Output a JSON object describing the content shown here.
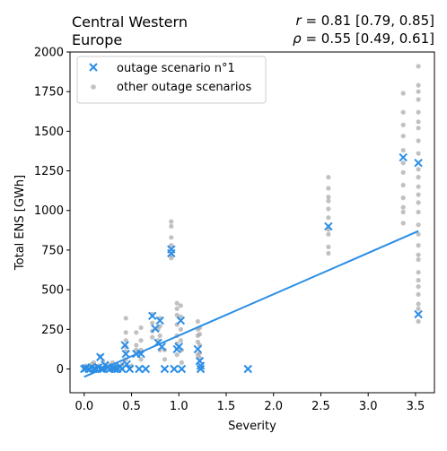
{
  "chart_data": {
    "type": "scatter",
    "title_lines": [
      "Central Western",
      "Europe"
    ],
    "stats": {
      "r_symbol": "r",
      "r_text": " = 0.81 [0.79, 0.85]",
      "rho_symbol": "ρ",
      "rho_text": " = 0.55 [0.49, 0.61]"
    },
    "xlabel": "Severity",
    "ylabel": "Total ENS [GWh]",
    "xlim": [
      -0.15,
      3.7
    ],
    "ylim": [
      -150,
      2000
    ],
    "x_ticks": [
      0.0,
      0.5,
      1.0,
      1.5,
      2.0,
      2.5,
      3.0,
      3.5
    ],
    "x_tick_labels": [
      "0.0",
      "0.5",
      "1.0",
      "1.5",
      "2.0",
      "2.5",
      "3.0",
      "3.5"
    ],
    "y_ticks": [
      0,
      250,
      500,
      750,
      1000,
      1250,
      1500,
      1750,
      2000
    ],
    "y_tick_labels": [
      "0",
      "250",
      "500",
      "750",
      "1000",
      "1250",
      "1500",
      "1750",
      "2000"
    ],
    "grid": false,
    "legend_position": "top-left",
    "colors": {
      "highlight": "#2b8ee6",
      "others": "#a6a6a6",
      "fit_line": "#2b8ee6"
    },
    "series": [
      {
        "name": "outage scenario n°1",
        "marker": "x",
        "points": [
          [
            0.0,
            0
          ],
          [
            0.02,
            5
          ],
          [
            0.05,
            0
          ],
          [
            0.08,
            10
          ],
          [
            0.1,
            0
          ],
          [
            0.12,
            0
          ],
          [
            0.15,
            10
          ],
          [
            0.17,
            75
          ],
          [
            0.18,
            0
          ],
          [
            0.2,
            0
          ],
          [
            0.22,
            25
          ],
          [
            0.25,
            10
          ],
          [
            0.27,
            0
          ],
          [
            0.3,
            5
          ],
          [
            0.32,
            0
          ],
          [
            0.35,
            0
          ],
          [
            0.38,
            15
          ],
          [
            0.4,
            0
          ],
          [
            0.43,
            150
          ],
          [
            0.44,
            95
          ],
          [
            0.45,
            30
          ],
          [
            0.48,
            0
          ],
          [
            0.55,
            95
          ],
          [
            0.58,
            0
          ],
          [
            0.6,
            95
          ],
          [
            0.65,
            0
          ],
          [
            0.72,
            335
          ],
          [
            0.75,
            255
          ],
          [
            0.78,
            165
          ],
          [
            0.8,
            305
          ],
          [
            0.82,
            140
          ],
          [
            0.85,
            0
          ],
          [
            0.92,
            730
          ],
          [
            0.92,
            755
          ],
          [
            0.95,
            0
          ],
          [
            0.98,
            125
          ],
          [
            1.0,
            140
          ],
          [
            1.02,
            305
          ],
          [
            1.03,
            0
          ],
          [
            1.2,
            125
          ],
          [
            1.22,
            50
          ],
          [
            1.23,
            0
          ],
          [
            1.23,
            20
          ],
          [
            1.73,
            0
          ],
          [
            2.58,
            900
          ],
          [
            3.37,
            1335
          ],
          [
            3.53,
            1300
          ],
          [
            3.53,
            345
          ]
        ]
      },
      {
        "name": "other outage scenarios",
        "marker": "o",
        "points": [
          [
            0.0,
            5
          ],
          [
            0.02,
            20
          ],
          [
            0.05,
            0
          ],
          [
            0.08,
            30
          ],
          [
            0.1,
            40
          ],
          [
            0.12,
            0
          ],
          [
            0.15,
            20
          ],
          [
            0.17,
            80
          ],
          [
            0.2,
            50
          ],
          [
            0.22,
            0
          ],
          [
            0.25,
            30
          ],
          [
            0.28,
            15
          ],
          [
            0.3,
            40
          ],
          [
            0.32,
            5
          ],
          [
            0.35,
            20
          ],
          [
            0.38,
            0
          ],
          [
            0.4,
            30
          ],
          [
            0.44,
            320
          ],
          [
            0.44,
            230
          ],
          [
            0.44,
            180
          ],
          [
            0.44,
            140
          ],
          [
            0.44,
            110
          ],
          [
            0.44,
            60
          ],
          [
            0.5,
            20
          ],
          [
            0.55,
            230
          ],
          [
            0.55,
            150
          ],
          [
            0.55,
            120
          ],
          [
            0.6,
            260
          ],
          [
            0.6,
            180
          ],
          [
            0.6,
            120
          ],
          [
            0.6,
            60
          ],
          [
            0.72,
            345
          ],
          [
            0.72,
            290
          ],
          [
            0.72,
            240
          ],
          [
            0.72,
            200
          ],
          [
            0.78,
            250
          ],
          [
            0.78,
            180
          ],
          [
            0.8,
            320
          ],
          [
            0.8,
            270
          ],
          [
            0.8,
            210
          ],
          [
            0.8,
            120
          ],
          [
            0.85,
            120
          ],
          [
            0.85,
            60
          ],
          [
            0.92,
            930
          ],
          [
            0.92,
            900
          ],
          [
            0.92,
            830
          ],
          [
            0.92,
            780
          ],
          [
            0.92,
            720
          ],
          [
            0.92,
            700
          ],
          [
            0.98,
            415
          ],
          [
            0.98,
            380
          ],
          [
            0.98,
            340
          ],
          [
            0.98,
            280
          ],
          [
            0.98,
            210
          ],
          [
            0.98,
            160
          ],
          [
            0.98,
            90
          ],
          [
            1.02,
            400
          ],
          [
            1.02,
            330
          ],
          [
            1.02,
            250
          ],
          [
            1.02,
            180
          ],
          [
            1.03,
            120
          ],
          [
            1.03,
            40
          ],
          [
            1.2,
            300
          ],
          [
            1.2,
            250
          ],
          [
            1.2,
            210
          ],
          [
            1.2,
            170
          ],
          [
            1.2,
            90
          ],
          [
            1.22,
            260
          ],
          [
            1.22,
            220
          ],
          [
            1.22,
            150
          ],
          [
            1.22,
            100
          ],
          [
            1.22,
            70
          ],
          [
            2.58,
            1210
          ],
          [
            2.58,
            1140
          ],
          [
            2.58,
            1085
          ],
          [
            2.58,
            1060
          ],
          [
            2.58,
            1010
          ],
          [
            2.58,
            955
          ],
          [
            2.58,
            880
          ],
          [
            2.58,
            850
          ],
          [
            2.58,
            770
          ],
          [
            2.58,
            730
          ],
          [
            3.37,
            1740
          ],
          [
            3.37,
            1620
          ],
          [
            3.37,
            1540
          ],
          [
            3.37,
            1470
          ],
          [
            3.37,
            1380
          ],
          [
            3.37,
            1300
          ],
          [
            3.37,
            1240
          ],
          [
            3.37,
            1160
          ],
          [
            3.37,
            1080
          ],
          [
            3.37,
            1020
          ],
          [
            3.37,
            990
          ],
          [
            3.37,
            920
          ],
          [
            3.53,
            1910
          ],
          [
            3.53,
            1790
          ],
          [
            3.53,
            1750
          ],
          [
            3.53,
            1700
          ],
          [
            3.53,
            1620
          ],
          [
            3.53,
            1560
          ],
          [
            3.53,
            1520
          ],
          [
            3.53,
            1440
          ],
          [
            3.53,
            1360
          ],
          [
            3.53,
            1260
          ],
          [
            3.53,
            1210
          ],
          [
            3.53,
            1150
          ],
          [
            3.53,
            1100
          ],
          [
            3.53,
            1050
          ],
          [
            3.53,
            990
          ],
          [
            3.53,
            910
          ],
          [
            3.53,
            850
          ],
          [
            3.53,
            780
          ],
          [
            3.53,
            720
          ],
          [
            3.53,
            690
          ],
          [
            3.53,
            610
          ],
          [
            3.53,
            560
          ],
          [
            3.53,
            520
          ],
          [
            3.53,
            470
          ],
          [
            3.53,
            410
          ],
          [
            3.53,
            380
          ],
          [
            3.53,
            300
          ]
        ]
      }
    ],
    "fit_line": {
      "x": [
        0.0,
        3.53
      ],
      "y": [
        -50,
        870
      ]
    }
  }
}
